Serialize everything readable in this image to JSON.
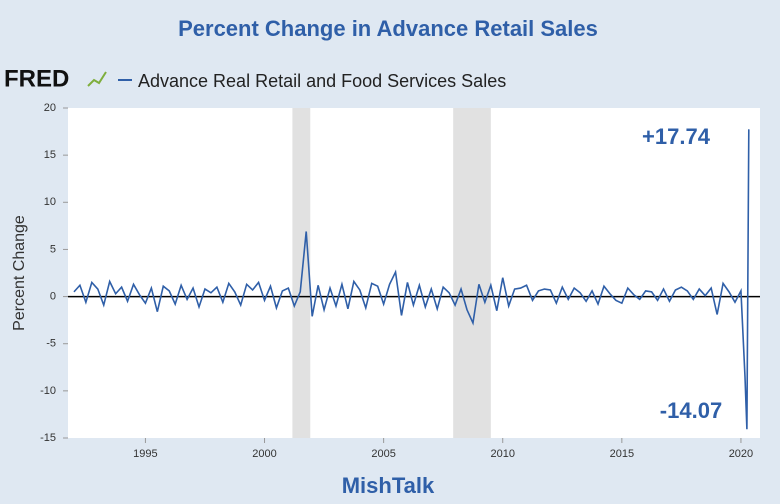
{
  "chart_data": {
    "type": "line",
    "title": "Percent Change in Advance Retail Sales",
    "logo": "FRED",
    "ylabel": "Percent Change",
    "footer": "MishTalk",
    "annotations": [
      "+17.74",
      "-14.07"
    ],
    "xlim": [
      1991.75,
      2020.8
    ],
    "xticks": [
      1995,
      2000,
      2005,
      2010,
      2015,
      2020
    ],
    "ylim": [
      -15,
      20
    ],
    "yticks": [
      -15,
      -10,
      -5,
      0,
      5,
      10,
      15,
      20
    ],
    "recessions": [
      [
        2001.17,
        2001.92
      ],
      [
        2007.92,
        2009.5
      ]
    ],
    "x": [
      1992,
      1992.25,
      1992.5,
      1992.75,
      1993,
      1993.25,
      1993.5,
      1993.75,
      1994,
      1994.25,
      1994.5,
      1994.75,
      1995,
      1995.25,
      1995.5,
      1995.75,
      1996,
      1996.25,
      1996.5,
      1996.75,
      1997,
      1997.25,
      1997.5,
      1997.75,
      1998,
      1998.25,
      1998.5,
      1998.75,
      1999,
      1999.25,
      1999.5,
      1999.75,
      2000,
      2000.25,
      2000.5,
      2000.75,
      2001,
      2001.25,
      2001.5,
      2001.75,
      2002,
      2002.25,
      2002.5,
      2002.75,
      2003,
      2003.25,
      2003.5,
      2003.75,
      2004,
      2004.25,
      2004.5,
      2004.75,
      2005,
      2005.25,
      2005.5,
      2005.75,
      2006,
      2006.25,
      2006.5,
      2006.75,
      2007,
      2007.25,
      2007.5,
      2007.75,
      2008,
      2008.25,
      2008.5,
      2008.75,
      2009,
      2009.25,
      2009.5,
      2009.75,
      2010,
      2010.25,
      2010.5,
      2010.75,
      2011,
      2011.25,
      2011.5,
      2011.75,
      2012,
      2012.25,
      2012.5,
      2012.75,
      2013,
      2013.25,
      2013.5,
      2013.75,
      2014,
      2014.25,
      2014.5,
      2014.75,
      2015,
      2015.25,
      2015.5,
      2015.75,
      2016,
      2016.25,
      2016.5,
      2016.75,
      2017,
      2017.25,
      2017.5,
      2017.75,
      2018,
      2018.25,
      2018.5,
      2018.75,
      2019,
      2019.25,
      2019.5,
      2019.75,
      2020,
      2020.17,
      2020.25,
      2020.33
    ],
    "series": [
      {
        "name": "Advance Real Retail and Food Services Sales",
        "color": "#2f5fa8",
        "values": [
          0.5,
          1.2,
          -0.6,
          1.5,
          0.8,
          -0.9,
          1.6,
          0.3,
          1.0,
          -0.5,
          1.3,
          0.2,
          -0.7,
          0.9,
          -1.6,
          1.1,
          0.6,
          -0.8,
          1.2,
          -0.3,
          0.9,
          -1.1,
          0.8,
          0.4,
          1.0,
          -0.6,
          1.4,
          0.5,
          -0.9,
          1.3,
          0.7,
          1.5,
          -0.4,
          1.1,
          -1.2,
          0.6,
          0.9,
          -1.0,
          0.5,
          6.9,
          -2.1,
          1.2,
          -1.4,
          0.9,
          -1.0,
          1.3,
          -1.3,
          1.6,
          0.7,
          -1.2,
          1.4,
          1.1,
          -0.8,
          1.3,
          2.6,
          -2.0,
          1.5,
          -0.9,
          1.2,
          -1.1,
          0.8,
          -1.3,
          1.0,
          0.4,
          -0.9,
          0.8,
          -1.4,
          -2.8,
          1.3,
          -0.6,
          1.2,
          -1.5,
          2.0,
          -1.0,
          0.8,
          0.9,
          1.2,
          -0.4,
          0.6,
          0.8,
          0.7,
          -0.7,
          1.0,
          -0.3,
          0.9,
          0.4,
          -0.5,
          0.6,
          -0.8,
          1.1,
          0.3,
          -0.4,
          -0.7,
          0.9,
          0.2,
          -0.3,
          0.6,
          0.5,
          -0.4,
          0.8,
          -0.5,
          0.7,
          1.0,
          0.6,
          -0.3,
          0.8,
          0.1,
          0.9,
          -1.9,
          1.4,
          0.5,
          -0.6,
          0.6,
          -8.5,
          -14.07,
          17.74
        ]
      }
    ]
  }
}
